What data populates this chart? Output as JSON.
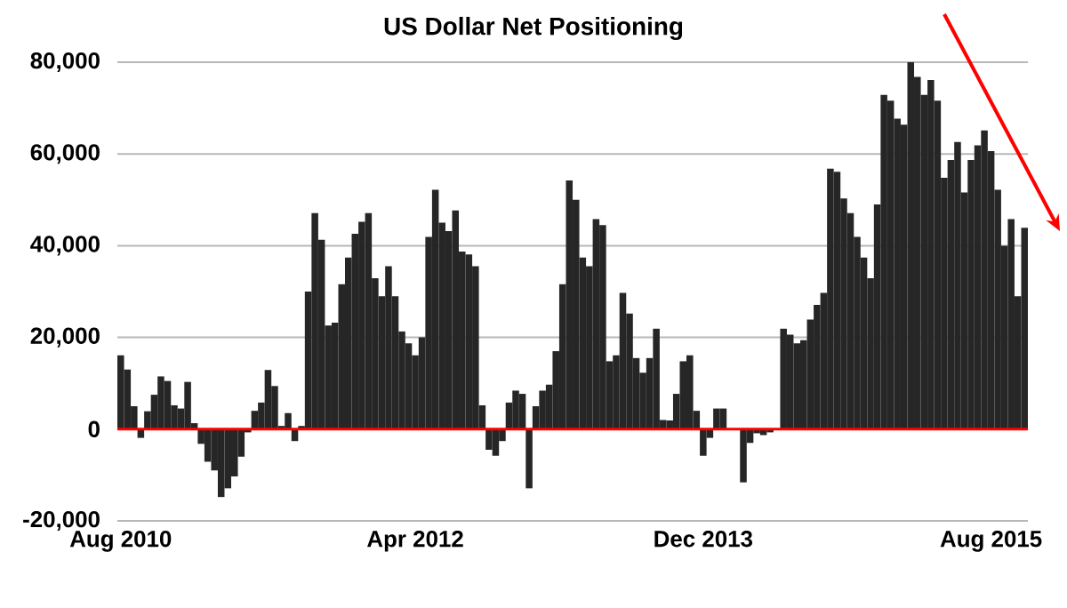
{
  "chart_data": {
    "type": "bar",
    "title": "US Dollar Net Positioning",
    "categories": [
      "Aug 2010",
      null,
      null,
      null,
      null,
      null,
      null,
      null,
      null,
      null,
      null,
      null,
      null,
      null,
      null,
      null,
      null,
      null,
      null,
      null,
      null,
      null,
      null,
      null,
      null,
      null,
      null,
      null,
      null,
      null,
      null,
      null,
      null,
      null,
      null,
      null,
      null,
      null,
      null,
      null,
      null,
      null,
      null,
      null,
      "Apr 2012",
      null,
      null,
      null,
      null,
      null,
      null,
      null,
      null,
      null,
      null,
      null,
      null,
      null,
      null,
      null,
      null,
      null,
      null,
      null,
      null,
      null,
      null,
      null,
      null,
      null,
      null,
      null,
      null,
      null,
      null,
      null,
      null,
      null,
      null,
      null,
      null,
      null,
      null,
      null,
      null,
      null,
      null,
      "Dec 2013",
      null,
      null,
      null,
      null,
      null,
      null,
      null,
      null,
      null,
      null,
      null,
      null,
      null,
      null,
      null,
      null,
      null,
      null,
      null,
      null,
      null,
      null,
      null,
      null,
      null,
      null,
      null,
      null,
      null,
      null,
      null,
      null,
      null,
      null,
      null,
      null,
      null,
      null,
      null,
      null,
      null,
      null,
      "Aug 2015",
      null,
      null,
      null,
      null,
      null
    ],
    "values": [
      16100,
      13000,
      5000,
      -1900,
      3900,
      7500,
      11500,
      10500,
      5200,
      4500,
      10300,
      1300,
      -3200,
      -7100,
      -9000,
      -14800,
      -12900,
      -10300,
      -6000,
      -700,
      4000,
      5800,
      12900,
      9400,
      700,
      3500,
      -2600,
      700,
      30000,
      47100,
      41300,
      22600,
      23200,
      31600,
      37400,
      42600,
      45200,
      47100,
      32900,
      29000,
      35500,
      29000,
      21300,
      18700,
      16100,
      20000,
      41900,
      52200,
      45000,
      43200,
      47700,
      38700,
      38100,
      35500,
      5200,
      -4500,
      -5800,
      -2600,
      5800,
      8400,
      7700,
      -12900,
      5000,
      8400,
      9700,
      17000,
      31600,
      54200,
      50000,
      37400,
      35500,
      45800,
      44500,
      14800,
      16100,
      29700,
      25200,
      15500,
      12300,
      15500,
      21900,
      2000,
      1900,
      7700,
      14800,
      16100,
      4000,
      -5800,
      -1900,
      4500,
      4500,
      null,
      null,
      -11600,
      -3000,
      -900,
      -1300,
      -700,
      null,
      21900,
      20600,
      18700,
      19400,
      23900,
      27100,
      29700,
      56800,
      56100,
      50300,
      47100,
      41900,
      37400,
      32900,
      49000,
      72900,
      71600,
      67700,
      66400,
      80000,
      76800,
      72900,
      76100,
      71600,
      54800,
      58700,
      62600,
      51600,
      58700,
      61900,
      65100,
      60600,
      52200,
      40000,
      45800,
      29000,
      43900
    ],
    "color": "#262626",
    "ylim": [
      -20000,
      80000
    ],
    "yticks": [
      {
        "value": -20000,
        "label": "-20,000"
      },
      {
        "value": 0,
        "label": "0"
      },
      {
        "value": 20000,
        "label": "20,000"
      },
      {
        "value": 40000,
        "label": "40,000"
      },
      {
        "value": 60000,
        "label": "60,000"
      },
      {
        "value": 80000,
        "label": "80,000"
      }
    ],
    "grid": "y",
    "ref_lines": [
      {
        "axis": "y",
        "value": 0,
        "color": "#ff0000"
      }
    ]
  }
}
